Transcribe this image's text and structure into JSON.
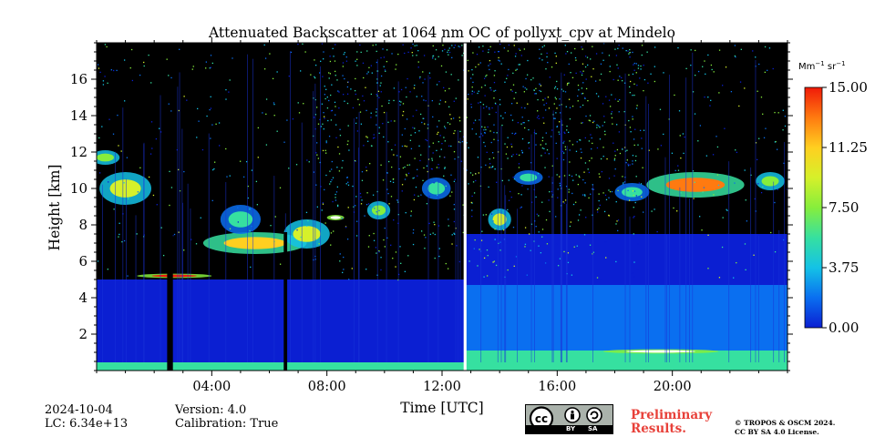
{
  "chart_data": {
    "type": "heatmap",
    "title": "Attenuated Backscatter at 1064 nm OC of pollyxt_cpv at Mindelo",
    "xlabel": "Time [UTC]",
    "ylabel": "Height [km]",
    "x_range_hours": [
      0,
      24
    ],
    "y_range_km": [
      0,
      18
    ],
    "x_ticks": [
      {
        "value": 4,
        "label": "04:00"
      },
      {
        "value": 8,
        "label": "08:00"
      },
      {
        "value": 12,
        "label": "12:00"
      },
      {
        "value": 16,
        "label": "16:00"
      },
      {
        "value": 20,
        "label": "20:00"
      }
    ],
    "y_ticks": [
      {
        "value": 2,
        "label": "2"
      },
      {
        "value": 4,
        "label": "4"
      },
      {
        "value": 6,
        "label": "6"
      },
      {
        "value": 8,
        "label": "8"
      },
      {
        "value": 10,
        "label": "10"
      },
      {
        "value": 12,
        "label": "12"
      },
      {
        "value": 14,
        "label": "14"
      },
      {
        "value": 16,
        "label": "16"
      }
    ],
    "colorbar": {
      "unit_base1": "Mm",
      "unit_exp1": "−1",
      "unit_base2": " sr",
      "unit_exp2": "−1",
      "range": [
        0,
        15
      ],
      "ticks": [
        {
          "value": 0,
          "label": "0.00"
        },
        {
          "value": 3.75,
          "label": "3.75"
        },
        {
          "value": 7.5,
          "label": "7.50"
        },
        {
          "value": 11.25,
          "label": "11.25"
        },
        {
          "value": 15,
          "label": "15.00"
        }
      ],
      "colors": [
        "#0b1fd2",
        "#0a6ff0",
        "#14c2e6",
        "#36e0a0",
        "#86ee3c",
        "#d6f02a",
        "#ffcf20",
        "#ff7a10",
        "#f01a08"
      ]
    },
    "background_color": "#000000",
    "layers": [
      {
        "name": "surface layer",
        "t0": 0,
        "t1": 24,
        "z0": 0.0,
        "z1": 0.45,
        "level": 6.5
      },
      {
        "name": "boundary layer morning",
        "t0": 0,
        "t1": 12.8,
        "z0": 0.45,
        "z1": 2.5,
        "level": 1.1
      },
      {
        "name": "residual layer morning",
        "t0": 0,
        "t1": 12.8,
        "z0": 2.5,
        "z1": 5.0,
        "level": 0.7
      },
      {
        "name": "boundary layer afternoon",
        "t0": 12.8,
        "t1": 24,
        "z0": 0.45,
        "z1": 1.1,
        "level": 5.2
      },
      {
        "name": "mixed layer afternoon",
        "t0": 12.8,
        "t1": 24,
        "z0": 1.1,
        "z1": 4.7,
        "level": 2.5
      },
      {
        "name": "upper aerosol afternoon",
        "t0": 12.8,
        "t1": 24,
        "z0": 4.7,
        "z1": 7.5,
        "level": 0.8
      }
    ],
    "clouds": [
      {
        "t": 1.0,
        "z": 10.0,
        "dt": 0.9,
        "dz": 0.9,
        "level": 9.0
      },
      {
        "t": 0.3,
        "z": 11.7,
        "dt": 0.5,
        "dz": 0.4,
        "level": 7.0
      },
      {
        "t": 5.5,
        "z": 7.0,
        "dt": 1.8,
        "dz": 0.6,
        "level": 11.0
      },
      {
        "t": 7.3,
        "z": 7.5,
        "dt": 0.8,
        "dz": 0.8,
        "level": 9.0
      },
      {
        "t": 5.0,
        "z": 8.3,
        "dt": 0.7,
        "dz": 0.8,
        "level": 6.0
      },
      {
        "t": 9.8,
        "z": 8.8,
        "dt": 0.4,
        "dz": 0.5,
        "level": 8.0
      },
      {
        "t": 8.3,
        "z": 8.4,
        "dt": 0.3,
        "dz": 0.15,
        "level": 15.0
      },
      {
        "t": 2.7,
        "z": 5.2,
        "dt": 1.3,
        "dz": 0.12,
        "level": 14.0
      },
      {
        "t": 14.0,
        "z": 8.3,
        "dt": 0.4,
        "dz": 0.6,
        "level": 9.0
      },
      {
        "t": 11.8,
        "z": 10.0,
        "dt": 0.5,
        "dz": 0.6,
        "level": 6.0
      },
      {
        "t": 15.0,
        "z": 10.6,
        "dt": 0.5,
        "dz": 0.4,
        "level": 6.0
      },
      {
        "t": 20.8,
        "z": 10.2,
        "dt": 1.7,
        "dz": 0.7,
        "level": 12.0
      },
      {
        "t": 23.4,
        "z": 10.4,
        "dt": 0.5,
        "dz": 0.5,
        "level": 8.0
      },
      {
        "t": 18.6,
        "z": 9.8,
        "dt": 0.6,
        "dz": 0.5,
        "level": 6.0
      },
      {
        "t": 19.6,
        "z": 1.05,
        "dt": 2.0,
        "dz": 0.12,
        "level": 15.0
      }
    ],
    "gaps": [
      {
        "t0": 2.45,
        "t1": 2.65
      },
      {
        "t0": 6.5,
        "t1": 6.62
      },
      {
        "t0": 12.75,
        "t1": 12.85
      }
    ]
  },
  "footer": {
    "date": "2024-10-04",
    "lc": "LC: 6.34e+13",
    "version": "Version: 4.0",
    "calibration": "Calibration: True",
    "cc_label_by": "BY",
    "cc_label_sa": "SA",
    "prelim_line1": "Preliminary",
    "prelim_line2": "Results.",
    "copyright_line1": "© TROPOS & OSCM 2024.",
    "copyright_line2": "CC BY SA 4.0 License."
  },
  "colors": {
    "prelim": "#e8413a",
    "axis": "#000000"
  }
}
